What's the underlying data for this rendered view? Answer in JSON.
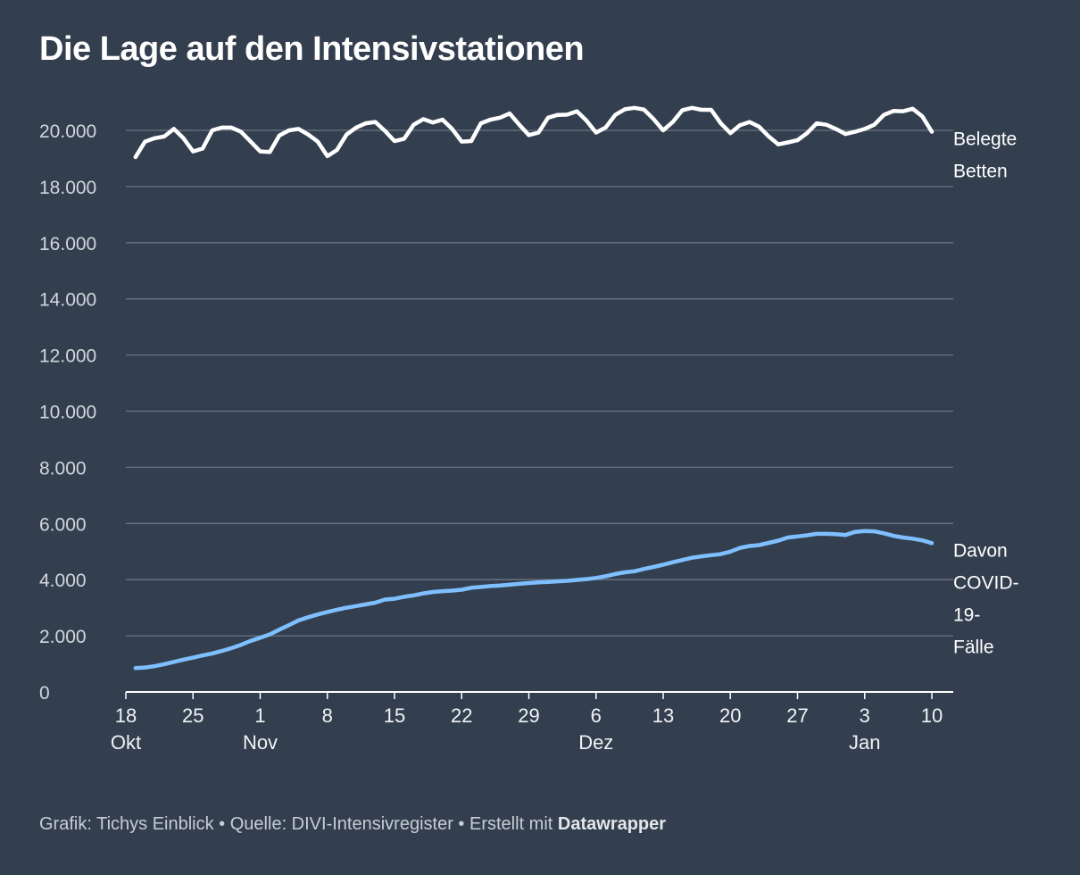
{
  "title": "Die Lage auf den Intensivstationen",
  "footer": {
    "graphic": "Grafik: Tichys Einblick",
    "separator": "•",
    "source": "Quelle: DIVI-Intensivregister",
    "made_with": "Erstellt mit",
    "brand": "Datawrapper"
  },
  "colors": {
    "background": "#333f4f",
    "grid": "#6b7482",
    "belegte": "#ffffff",
    "covid": "#7fbfff"
  },
  "chart_data": {
    "type": "line",
    "x_start": "2020-10-18",
    "x_end": "2021-01-10",
    "ylim": [
      0,
      21000
    ],
    "grid": true,
    "yticks": [
      "0",
      "2.000",
      "4.000",
      "6.000",
      "8.000",
      "10.000",
      "12.000",
      "14.000",
      "16.000",
      "18.000",
      "20.000"
    ],
    "ytick_values": [
      0,
      2000,
      4000,
      6000,
      8000,
      10000,
      12000,
      14000,
      16000,
      18000,
      20000
    ],
    "xticks": [
      {
        "date": "2020-10-18",
        "day": "18",
        "month": "Okt"
      },
      {
        "date": "2020-10-25",
        "day": "25",
        "month": ""
      },
      {
        "date": "2020-11-01",
        "day": "1",
        "month": "Nov"
      },
      {
        "date": "2020-11-08",
        "day": "8",
        "month": ""
      },
      {
        "date": "2020-11-15",
        "day": "15",
        "month": ""
      },
      {
        "date": "2020-11-22",
        "day": "22",
        "month": ""
      },
      {
        "date": "2020-11-29",
        "day": "29",
        "month": ""
      },
      {
        "date": "2020-12-06",
        "day": "6",
        "month": "Dez"
      },
      {
        "date": "2020-12-13",
        "day": "13",
        "month": ""
      },
      {
        "date": "2020-12-20",
        "day": "20",
        "month": ""
      },
      {
        "date": "2020-12-27",
        "day": "27",
        "month": ""
      },
      {
        "date": "2021-01-03",
        "day": "3",
        "month": "Jan"
      },
      {
        "date": "2021-01-10",
        "day": "10",
        "month": ""
      }
    ],
    "series": [
      {
        "name": "Belegte Betten",
        "label_lines": [
          "Belegte",
          "Betten"
        ],
        "color": "#ffffff",
        "points": [
          [
            "2020-10-19",
            19050
          ],
          [
            "2020-10-20",
            19600
          ],
          [
            "2020-10-21",
            19720
          ],
          [
            "2020-10-22",
            19780
          ],
          [
            "2020-10-23",
            20050
          ],
          [
            "2020-10-24",
            19720
          ],
          [
            "2020-10-25",
            19250
          ],
          [
            "2020-10-26",
            19350
          ],
          [
            "2020-10-27",
            20000
          ],
          [
            "2020-10-28",
            20100
          ],
          [
            "2020-10-29",
            20100
          ],
          [
            "2020-10-30",
            19950
          ],
          [
            "2020-10-31",
            19600
          ],
          [
            "2020-11-01",
            19250
          ],
          [
            "2020-11-02",
            19230
          ],
          [
            "2020-11-03",
            19820
          ],
          [
            "2020-11-04",
            20000
          ],
          [
            "2020-11-05",
            20050
          ],
          [
            "2020-11-06",
            19850
          ],
          [
            "2020-11-07",
            19600
          ],
          [
            "2020-11-08",
            19080
          ],
          [
            "2020-11-09",
            19300
          ],
          [
            "2020-11-10",
            19850
          ],
          [
            "2020-11-11",
            20100
          ],
          [
            "2020-11-12",
            20250
          ],
          [
            "2020-11-13",
            20300
          ],
          [
            "2020-11-14",
            19980
          ],
          [
            "2020-11-15",
            19620
          ],
          [
            "2020-11-16",
            19700
          ],
          [
            "2020-11-17",
            20200
          ],
          [
            "2020-11-18",
            20400
          ],
          [
            "2020-11-19",
            20280
          ],
          [
            "2020-11-20",
            20380
          ],
          [
            "2020-11-21",
            20050
          ],
          [
            "2020-11-22",
            19600
          ],
          [
            "2020-11-23",
            19620
          ],
          [
            "2020-11-24",
            20250
          ],
          [
            "2020-11-25",
            20380
          ],
          [
            "2020-11-26",
            20450
          ],
          [
            "2020-11-27",
            20600
          ],
          [
            "2020-11-28",
            20200
          ],
          [
            "2020-11-29",
            19830
          ],
          [
            "2020-11-30",
            19920
          ],
          [
            "2020-12-01",
            20450
          ],
          [
            "2020-12-02",
            20550
          ],
          [
            "2020-12-03",
            20560
          ],
          [
            "2020-12-04",
            20680
          ],
          [
            "2020-12-05",
            20350
          ],
          [
            "2020-12-06",
            19920
          ],
          [
            "2020-12-07",
            20100
          ],
          [
            "2020-12-08",
            20550
          ],
          [
            "2020-12-09",
            20750
          ],
          [
            "2020-12-10",
            20800
          ],
          [
            "2020-12-11",
            20740
          ],
          [
            "2020-12-12",
            20400
          ],
          [
            "2020-12-13",
            20000
          ],
          [
            "2020-12-14",
            20300
          ],
          [
            "2020-12-15",
            20720
          ],
          [
            "2020-12-16",
            20800
          ],
          [
            "2020-12-17",
            20730
          ],
          [
            "2020-12-18",
            20730
          ],
          [
            "2020-12-19",
            20250
          ],
          [
            "2020-12-20",
            19900
          ],
          [
            "2020-12-21",
            20180
          ],
          [
            "2020-12-22",
            20300
          ],
          [
            "2020-12-23",
            20130
          ],
          [
            "2020-12-24",
            19780
          ],
          [
            "2020-12-25",
            19500
          ],
          [
            "2020-12-26",
            19570
          ],
          [
            "2020-12-27",
            19650
          ],
          [
            "2020-12-28",
            19900
          ],
          [
            "2020-12-29",
            20250
          ],
          [
            "2020-12-30",
            20200
          ],
          [
            "2020-12-31",
            20050
          ],
          [
            "2021-01-01",
            19870
          ],
          [
            "2021-01-02",
            19950
          ],
          [
            "2021-01-03",
            20050
          ],
          [
            "2021-01-04",
            20200
          ],
          [
            "2021-01-05",
            20550
          ],
          [
            "2021-01-06",
            20690
          ],
          [
            "2021-01-07",
            20680
          ],
          [
            "2021-01-08",
            20770
          ],
          [
            "2021-01-09",
            20500
          ],
          [
            "2021-01-10",
            19950
          ]
        ]
      },
      {
        "name": "Davon COVID-19-Fälle",
        "label_lines": [
          "Davon",
          "COVID-",
          "19-",
          "Fälle"
        ],
        "color": "#7fbfff",
        "points": [
          [
            "2020-10-19",
            850
          ],
          [
            "2020-10-20",
            870
          ],
          [
            "2020-10-21",
            920
          ],
          [
            "2020-10-22",
            990
          ],
          [
            "2020-10-23",
            1070
          ],
          [
            "2020-10-24",
            1150
          ],
          [
            "2020-10-25",
            1220
          ],
          [
            "2020-10-26",
            1300
          ],
          [
            "2020-10-27",
            1370
          ],
          [
            "2020-10-28",
            1460
          ],
          [
            "2020-10-29",
            1560
          ],
          [
            "2020-10-30",
            1680
          ],
          [
            "2020-10-31",
            1820
          ],
          [
            "2020-11-01",
            1930
          ],
          [
            "2020-11-02",
            2050
          ],
          [
            "2020-11-03",
            2220
          ],
          [
            "2020-11-04",
            2380
          ],
          [
            "2020-11-05",
            2550
          ],
          [
            "2020-11-06",
            2660
          ],
          [
            "2020-11-07",
            2760
          ],
          [
            "2020-11-08",
            2850
          ],
          [
            "2020-11-09",
            2930
          ],
          [
            "2020-11-10",
            3000
          ],
          [
            "2020-11-11",
            3060
          ],
          [
            "2020-11-12",
            3120
          ],
          [
            "2020-11-13",
            3180
          ],
          [
            "2020-11-14",
            3290
          ],
          [
            "2020-11-15",
            3320
          ],
          [
            "2020-11-16",
            3390
          ],
          [
            "2020-11-17",
            3440
          ],
          [
            "2020-11-18",
            3510
          ],
          [
            "2020-11-19",
            3560
          ],
          [
            "2020-11-20",
            3590
          ],
          [
            "2020-11-21",
            3610
          ],
          [
            "2020-11-22",
            3640
          ],
          [
            "2020-11-23",
            3710
          ],
          [
            "2020-11-24",
            3740
          ],
          [
            "2020-11-25",
            3770
          ],
          [
            "2020-11-26",
            3790
          ],
          [
            "2020-11-27",
            3820
          ],
          [
            "2020-11-28",
            3850
          ],
          [
            "2020-11-29",
            3880
          ],
          [
            "2020-11-30",
            3900
          ],
          [
            "2020-12-01",
            3920
          ],
          [
            "2020-12-02",
            3940
          ],
          [
            "2020-12-03",
            3960
          ],
          [
            "2020-12-04",
            3990
          ],
          [
            "2020-12-05",
            4020
          ],
          [
            "2020-12-06",
            4060
          ],
          [
            "2020-12-07",
            4120
          ],
          [
            "2020-12-08",
            4200
          ],
          [
            "2020-12-09",
            4260
          ],
          [
            "2020-12-10",
            4300
          ],
          [
            "2020-12-11",
            4380
          ],
          [
            "2020-12-12",
            4450
          ],
          [
            "2020-12-13",
            4530
          ],
          [
            "2020-12-14",
            4620
          ],
          [
            "2020-12-15",
            4700
          ],
          [
            "2020-12-16",
            4780
          ],
          [
            "2020-12-17",
            4830
          ],
          [
            "2020-12-18",
            4870
          ],
          [
            "2020-12-19",
            4910
          ],
          [
            "2020-12-20",
            5000
          ],
          [
            "2020-12-21",
            5130
          ],
          [
            "2020-12-22",
            5200
          ],
          [
            "2020-12-23",
            5230
          ],
          [
            "2020-12-24",
            5310
          ],
          [
            "2020-12-25",
            5390
          ],
          [
            "2020-12-26",
            5500
          ],
          [
            "2020-12-27",
            5540
          ],
          [
            "2020-12-28",
            5580
          ],
          [
            "2020-12-29",
            5630
          ],
          [
            "2020-12-30",
            5630
          ],
          [
            "2020-12-31",
            5620
          ],
          [
            "2021-01-01",
            5590
          ],
          [
            "2021-01-02",
            5700
          ],
          [
            "2021-01-03",
            5730
          ],
          [
            "2021-01-04",
            5720
          ],
          [
            "2021-01-05",
            5650
          ],
          [
            "2021-01-06",
            5560
          ],
          [
            "2021-01-07",
            5500
          ],
          [
            "2021-01-08",
            5460
          ],
          [
            "2021-01-09",
            5400
          ],
          [
            "2021-01-10",
            5300
          ]
        ]
      }
    ]
  }
}
